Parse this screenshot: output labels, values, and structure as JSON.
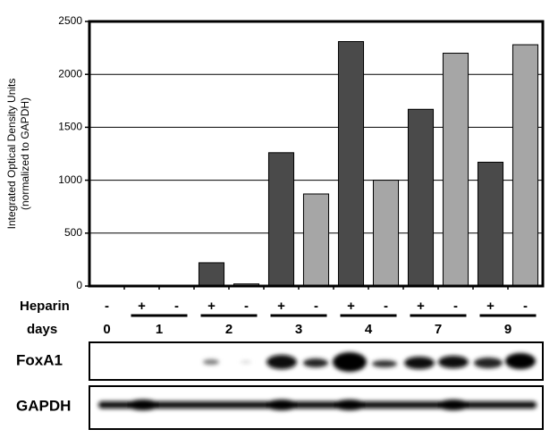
{
  "chart_data": {
    "type": "bar",
    "y_label": [
      "Integrated Optical Density Units",
      "(normalized to GAPDH)"
    ],
    "categories": [
      "-",
      "+",
      "-",
      "+",
      "-",
      "+",
      "-",
      "+",
      "-",
      "+",
      "-",
      "+",
      "-"
    ],
    "categories_label": "Heparin",
    "days": [
      "0",
      "1",
      "2",
      "3",
      "4",
      "7",
      "9"
    ],
    "days_label": "days",
    "series": [
      {
        "color": "#4a4a4a",
        "values": [
          null,
          0,
          null,
          220,
          null,
          1260,
          null,
          2310,
          null,
          1670,
          null,
          1170,
          null
        ]
      },
      {
        "color": "#a6a6a6",
        "values": [
          0,
          null,
          0,
          null,
          20,
          null,
          870,
          null,
          1000,
          null,
          2200,
          null,
          2280
        ]
      }
    ],
    "ylim": [
      0,
      2500
    ],
    "yticks": [
      0,
      500,
      1000,
      1500,
      2000,
      2500
    ],
    "grid": true,
    "blots": [
      "FoxA1",
      "GAPDH"
    ]
  }
}
